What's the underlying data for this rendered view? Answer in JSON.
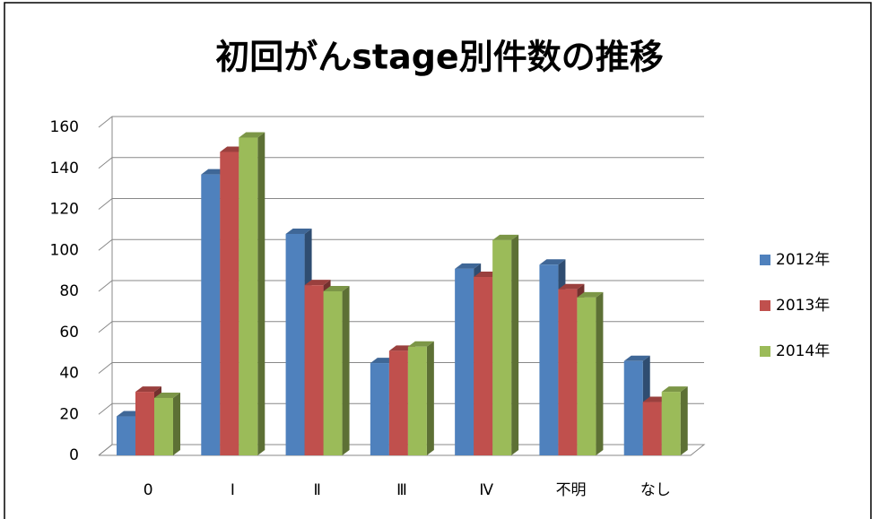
{
  "chart_data": {
    "type": "bar3d",
    "title": "初回がんstage別件数の推移",
    "categories": [
      "0",
      "Ⅰ",
      "Ⅱ",
      "Ⅲ",
      "Ⅳ",
      "不明",
      "なし"
    ],
    "series": [
      {
        "name": "2012年",
        "color": "#4f81bd",
        "values": [
          19,
          137,
          108,
          45,
          91,
          93,
          46
        ]
      },
      {
        "name": "2013年",
        "color": "#c0504d",
        "values": [
          31,
          148,
          83,
          51,
          87,
          81,
          26
        ]
      },
      {
        "name": "2014年",
        "color": "#9bbb59",
        "values": [
          28,
          155,
          80,
          53,
          105,
          77,
          31
        ]
      }
    ],
    "ylim": [
      0,
      160
    ],
    "yticks": [
      0,
      20,
      40,
      60,
      80,
      100,
      120,
      140,
      160
    ],
    "grid": true,
    "legend": "right"
  }
}
